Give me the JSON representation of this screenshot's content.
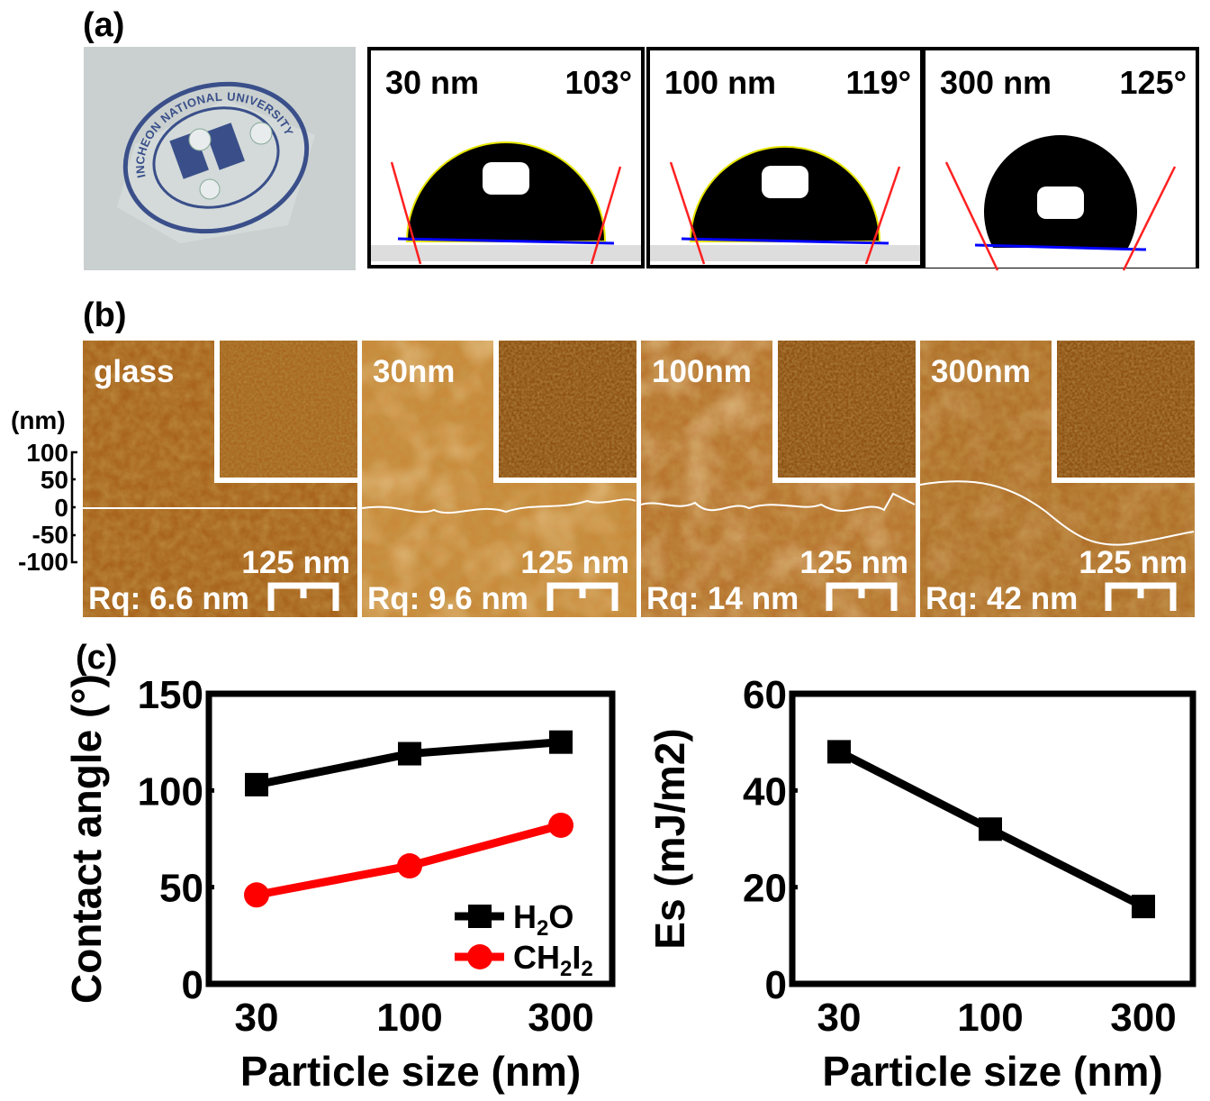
{
  "panel_a": {
    "label": "(a)",
    "photo_seal_text": "INCHEON NATIONAL UNIVERSITY",
    "droplets": [
      {
        "size": "30 nm",
        "angle": "103°"
      },
      {
        "size": "100 nm",
        "angle": "119°"
      },
      {
        "size": "300 nm",
        "angle": "125°"
      }
    ]
  },
  "panel_b": {
    "label": "(b)",
    "height_axis": {
      "unit": "(nm)",
      "ticks": [
        "100",
        "50",
        "0",
        "-50",
        "-100"
      ]
    },
    "images": [
      {
        "name": "glass",
        "scale": "125 nm",
        "rq": "Rq: 6.6 nm"
      },
      {
        "name": "30nm",
        "scale": "125 nm",
        "rq": "Rq: 9.6 nm"
      },
      {
        "name": "100nm",
        "scale": "125 nm",
        "rq": "Rq: 14 nm"
      },
      {
        "name": "300nm",
        "scale": "125 nm",
        "rq": "Rq: 42 nm"
      }
    ]
  },
  "panel_c": {
    "label": "(c)"
  },
  "chart_data": [
    {
      "type": "line",
      "categories": [
        "30",
        "100",
        "300"
      ],
      "xlabel": "Particle size (nm)",
      "ylabel": "Contact angle (°)",
      "ylim": [
        0,
        150
      ],
      "yticks": [
        "0",
        "50",
        "100",
        "150"
      ],
      "legend": "bottom-right",
      "grid": false,
      "series": [
        {
          "name": "H2O",
          "name_main": "H",
          "name_sub": "2",
          "name_tail": "O",
          "marker": "square",
          "color": "#000000",
          "values": [
            103,
            119,
            125
          ]
        },
        {
          "name": "CH2I2",
          "name_main": "CH",
          "name_sub": "2",
          "name_tail": "I",
          "name_sub2": "2",
          "marker": "circle",
          "color": "#ff0000",
          "values": [
            46,
            61,
            82
          ]
        }
      ]
    },
    {
      "type": "line",
      "categories": [
        "30",
        "100",
        "300"
      ],
      "xlabel": "Particle size (nm)",
      "ylabel": "Es (mJ/m2)",
      "ylabel_main": "E",
      "ylabel_sub": "s",
      "ylabel_unit": " (mJ/m",
      "ylabel_sup": "2",
      "ylabel_close": ")",
      "ylim": [
        0,
        60
      ],
      "yticks": [
        "0",
        "20",
        "40",
        "60"
      ],
      "grid": false,
      "series": [
        {
          "marker": "square",
          "color": "#000000",
          "values": [
            48,
            32,
            16
          ]
        }
      ]
    }
  ]
}
